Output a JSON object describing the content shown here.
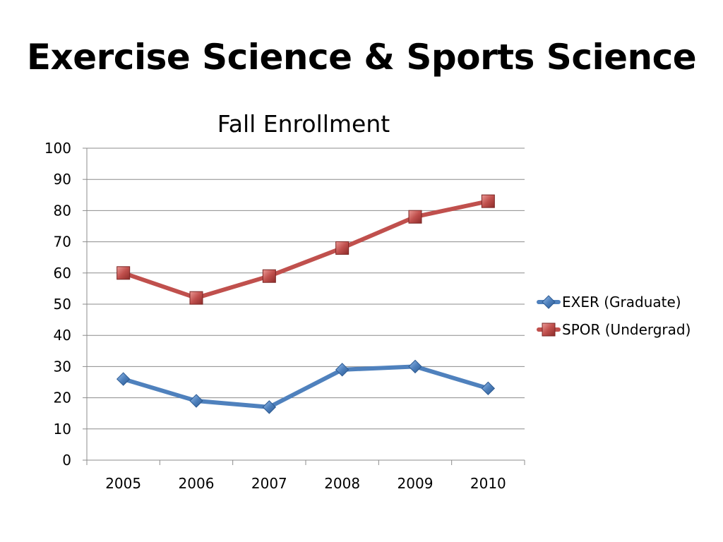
{
  "slide": {
    "title": "Exercise Science & Sports Science"
  },
  "chart_data": {
    "type": "line",
    "title": "Fall Enrollment",
    "xlabel": "",
    "ylabel": "",
    "categories": [
      "2005",
      "2006",
      "2007",
      "2008",
      "2009",
      "2010"
    ],
    "ylim": [
      0,
      100
    ],
    "ytick_step": 10,
    "grid": true,
    "legend_position": "right",
    "series": [
      {
        "name": "EXER (Graduate)",
        "values": [
          26,
          19,
          17,
          29,
          30,
          23
        ],
        "color": "#4F81BD",
        "marker": "diamond"
      },
      {
        "name": "SPOR (Undergrad)",
        "values": [
          60,
          52,
          59,
          68,
          78,
          83
        ],
        "color": "#C0504D",
        "marker": "square"
      }
    ]
  }
}
